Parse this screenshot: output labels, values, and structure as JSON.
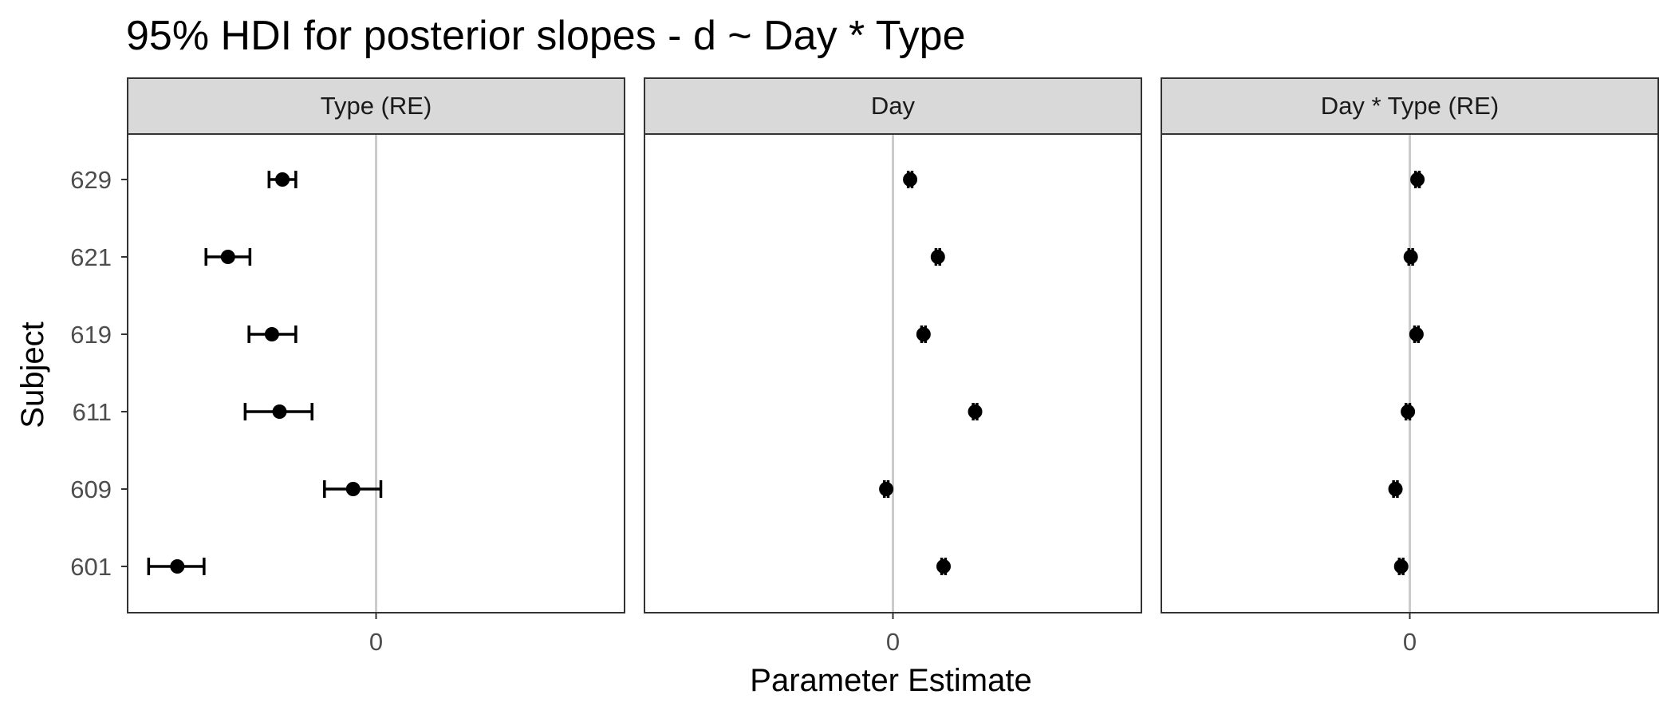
{
  "chart_data": {
    "type": "scatter",
    "title": "95% HDI for posterior slopes - d ~ Day * Type",
    "xlabel": "Parameter Estimate",
    "ylabel": "Subject",
    "x_tick_label": "0",
    "subjects": [
      "629",
      "621",
      "619",
      "611",
      "609",
      "601"
    ],
    "grid": false,
    "reference_line_at": 0,
    "facets": [
      {
        "label": "Type (RE)",
        "xlim": [
          -2.6,
          2.6
        ],
        "points": [
          {
            "subject": "629",
            "estimate": -0.98,
            "lower": -1.12,
            "upper": -0.84
          },
          {
            "subject": "621",
            "estimate": -1.55,
            "lower": -1.78,
            "upper": -1.32
          },
          {
            "subject": "619",
            "estimate": -1.09,
            "lower": -1.33,
            "upper": -0.84
          },
          {
            "subject": "611",
            "estimate": -1.01,
            "lower": -1.37,
            "upper": -0.67
          },
          {
            "subject": "609",
            "estimate": -0.24,
            "lower": -0.54,
            "upper": 0.05
          },
          {
            "subject": "601",
            "estimate": -2.08,
            "lower": -2.38,
            "upper": -1.8
          }
        ]
      },
      {
        "label": "Day",
        "xlim": [
          -2.6,
          2.6
        ],
        "points": [
          {
            "subject": "629",
            "estimate": 0.18,
            "lower": 0.16,
            "upper": 0.2
          },
          {
            "subject": "621",
            "estimate": 0.47,
            "lower": 0.45,
            "upper": 0.49
          },
          {
            "subject": "619",
            "estimate": 0.32,
            "lower": 0.3,
            "upper": 0.34
          },
          {
            "subject": "611",
            "estimate": 0.86,
            "lower": 0.84,
            "upper": 0.88
          },
          {
            "subject": "609",
            "estimate": -0.07,
            "lower": -0.09,
            "upper": -0.05
          },
          {
            "subject": "601",
            "estimate": 0.53,
            "lower": 0.51,
            "upper": 0.55
          }
        ]
      },
      {
        "label": "Day * Type (RE)",
        "xlim": [
          -2.6,
          2.6
        ],
        "points": [
          {
            "subject": "629",
            "estimate": 0.08,
            "lower": 0.06,
            "upper": 0.1
          },
          {
            "subject": "621",
            "estimate": 0.01,
            "lower": -0.01,
            "upper": 0.03
          },
          {
            "subject": "619",
            "estimate": 0.07,
            "lower": 0.05,
            "upper": 0.09
          },
          {
            "subject": "611",
            "estimate": -0.02,
            "lower": -0.04,
            "upper": 0.0
          },
          {
            "subject": "609",
            "estimate": -0.15,
            "lower": -0.17,
            "upper": -0.13
          },
          {
            "subject": "601",
            "estimate": -0.09,
            "lower": -0.11,
            "upper": -0.07
          }
        ]
      }
    ],
    "colors": {
      "points": "#000000",
      "strip_fill": "#d9d9d9",
      "zero_line": "#cccccc",
      "panel_border": "#333333",
      "tick_text": "#4d4d4d"
    }
  }
}
